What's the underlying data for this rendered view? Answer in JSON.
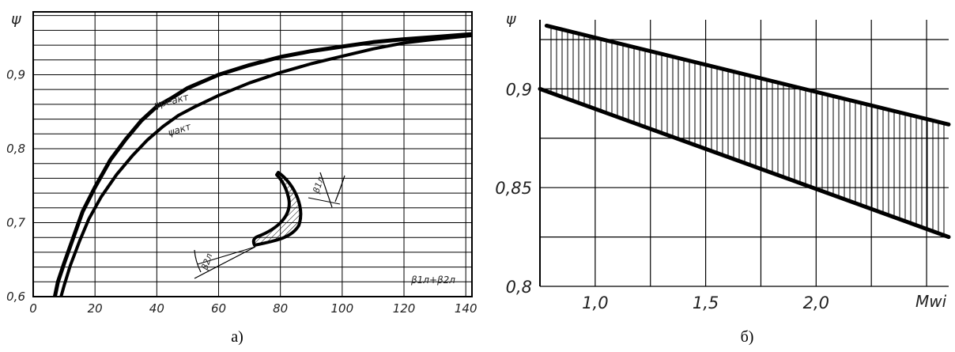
{
  "chart_data": [
    {
      "type": "line",
      "caption": "а)",
      "ylabel": "ψ",
      "xlabel": "β1л+β2л",
      "xlim": [
        0,
        142
      ],
      "ylim": [
        0.6,
        0.985
      ],
      "x_ticks": [
        0,
        20,
        40,
        60,
        80,
        100,
        120,
        140
      ],
      "y_ticks": [
        0.6,
        0.7,
        0.8,
        0.9
      ],
      "x_tick_labels": [
        "0",
        "20",
        "40",
        "60",
        "80",
        "100",
        "120",
        "140"
      ],
      "y_tick_labels": [
        "0,6",
        "0,7",
        "0,8",
        "0,9"
      ],
      "grid": true,
      "series": [
        {
          "name": "ψреакт",
          "x": [
            7,
            8,
            10,
            13,
            16,
            20,
            25,
            30,
            35,
            40,
            45,
            50,
            60,
            70,
            80,
            90,
            100,
            110,
            120,
            130,
            142
          ],
          "y": [
            0.6,
            0.62,
            0.645,
            0.68,
            0.715,
            0.748,
            0.785,
            0.813,
            0.838,
            0.857,
            0.869,
            0.882,
            0.9,
            0.913,
            0.924,
            0.932,
            0.938,
            0.944,
            0.948,
            0.951,
            0.955
          ]
        },
        {
          "name": "ψакт",
          "x": [
            9,
            10,
            12,
            15,
            18,
            22,
            27,
            32,
            37,
            42,
            47,
            52,
            60,
            70,
            80,
            90,
            100,
            110,
            120,
            130,
            142
          ],
          "y": [
            0.6,
            0.615,
            0.642,
            0.675,
            0.705,
            0.735,
            0.765,
            0.79,
            0.812,
            0.83,
            0.845,
            0.856,
            0.872,
            0.889,
            0.903,
            0.915,
            0.925,
            0.935,
            0.943,
            0.948,
            0.953
          ]
        }
      ],
      "annotation_labels": [
        "β1л",
        "β2л"
      ]
    },
    {
      "type": "area",
      "caption": "б)",
      "ylabel": "ψ",
      "xlabel": "Mwi",
      "xlim": [
        0.75,
        2.6
      ],
      "ylim": [
        0.8,
        0.935
      ],
      "x_ticks": [
        1.0,
        1.5,
        2.0
      ],
      "y_ticks": [
        0.8,
        0.85,
        0.9
      ],
      "x_tick_labels": [
        "1,0",
        "1,5",
        "2,0"
      ],
      "y_tick_labels": [
        "0,8",
        "0,85",
        "0,9"
      ],
      "grid": true,
      "series": [
        {
          "name": "",
          "x": [
            0.78,
            2.6
          ],
          "y": [
            0.932,
            0.882
          ]
        },
        {
          "name": "",
          "x": [
            0.75,
            2.6
          ],
          "y": [
            0.9,
            0.825
          ]
        }
      ]
    }
  ]
}
